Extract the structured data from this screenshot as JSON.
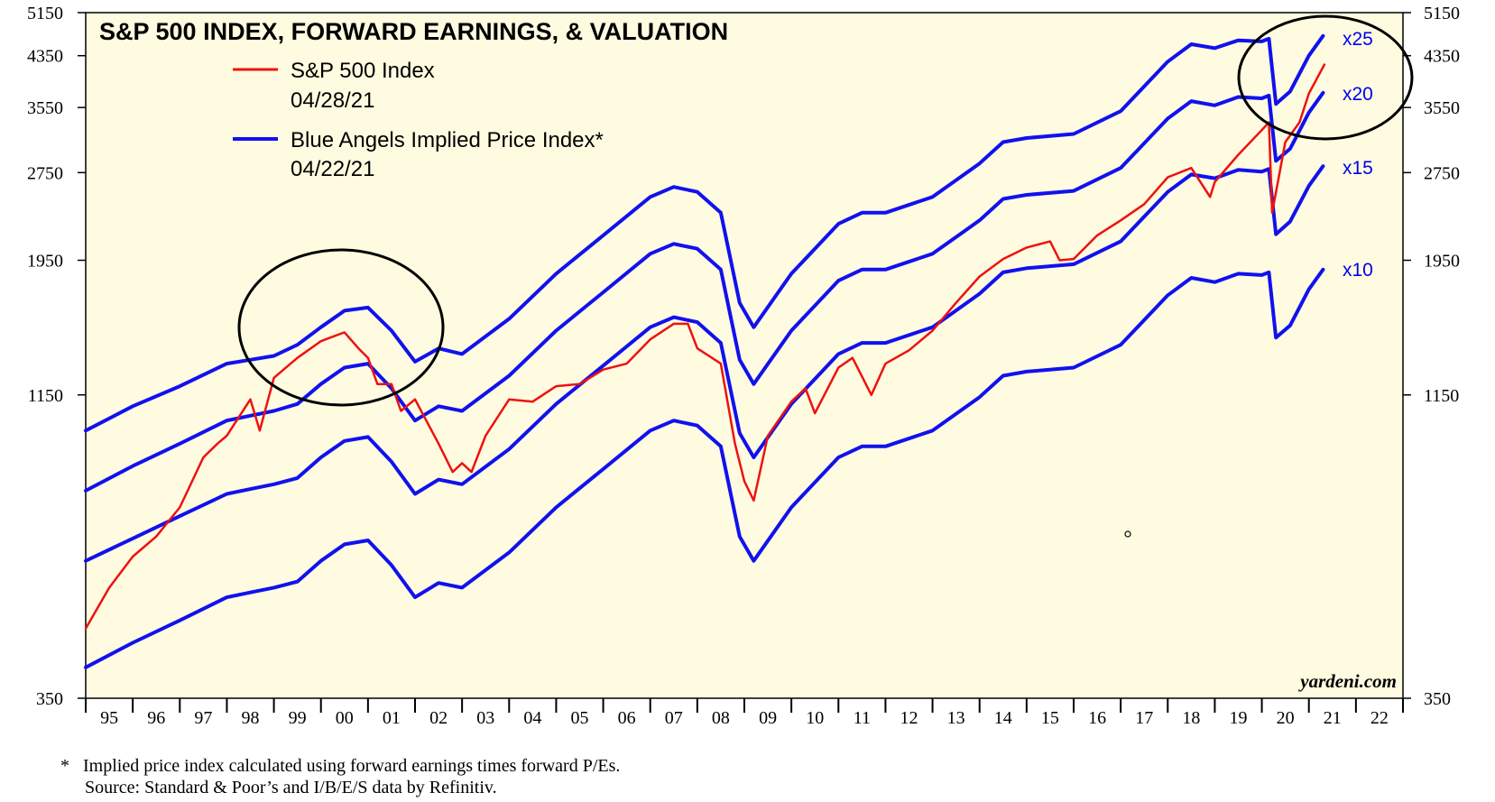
{
  "chart_data": {
    "type": "line",
    "title": "S&P 500 INDEX, FORWARD EARNINGS, & VALUATION",
    "y_scale": "log",
    "ylim": [
      350,
      5150
    ],
    "y_ticks": [
      "5150",
      "4350",
      "3550",
      "2750",
      "1950",
      "1150",
      "350"
    ],
    "x_ticks": [
      "95",
      "96",
      "97",
      "98",
      "99",
      "00",
      "01",
      "02",
      "03",
      "04",
      "05",
      "06",
      "07",
      "08",
      "09",
      "10",
      "11",
      "12",
      "13",
      "14",
      "15",
      "16",
      "17",
      "18",
      "19",
      "20",
      "21",
      "22"
    ],
    "xlim": [
      1995.0,
      2023.0
    ],
    "legend": [
      {
        "label": "S&P 500 Index",
        "date": "04/28/21",
        "color": "#ee1111"
      },
      {
        "label": "Blue Angels Implied Price Index*",
        "date": "04/22/21",
        "color": "#1111ee"
      }
    ],
    "multiple_labels": [
      "x25",
      "x20",
      "x15",
      "x10"
    ],
    "series": [
      {
        "name": "S&P 500 Index",
        "color": "#ee1111",
        "x": [
          1995.0,
          1995.5,
          1996.0,
          1996.5,
          1997.0,
          1997.5,
          1997.8,
          1998.0,
          1998.5,
          1998.7,
          1999.0,
          1999.5,
          2000.0,
          2000.2,
          2000.5,
          2000.8,
          2001.0,
          2001.2,
          2001.5,
          2001.7,
          2002.0,
          2002.5,
          2002.8,
          2003.0,
          2003.2,
          2003.5,
          2004.0,
          2004.5,
          2005.0,
          2005.5,
          2006.0,
          2006.5,
          2007.0,
          2007.5,
          2007.8,
          2008.0,
          2008.5,
          2008.8,
          2009.0,
          2009.2,
          2009.5,
          2010.0,
          2010.3,
          2010.5,
          2011.0,
          2011.3,
          2011.7,
          2012.0,
          2012.5,
          2013.0,
          2013.5,
          2014.0,
          2014.5,
          2015.0,
          2015.5,
          2015.7,
          2016.0,
          2016.5,
          2017.0,
          2017.5,
          2018.0,
          2018.5,
          2018.9,
          2019.0,
          2019.5,
          2020.0,
          2020.15,
          2020.22,
          2020.5,
          2020.8,
          2021.0,
          2021.33
        ],
        "y": [
          460,
          540,
          610,
          660,
          740,
          900,
          950,
          980,
          1130,
          1000,
          1230,
          1330,
          1420,
          1440,
          1470,
          1380,
          1330,
          1200,
          1200,
          1080,
          1130,
          950,
          850,
          880,
          850,
          980,
          1130,
          1120,
          1190,
          1200,
          1270,
          1300,
          1430,
          1520,
          1520,
          1380,
          1300,
          950,
          820,
          760,
          980,
          1120,
          1180,
          1070,
          1280,
          1330,
          1150,
          1300,
          1370,
          1480,
          1650,
          1830,
          1960,
          2050,
          2100,
          1950,
          1960,
          2150,
          2280,
          2430,
          2700,
          2800,
          2500,
          2650,
          2950,
          3250,
          3350,
          2350,
          3100,
          3350,
          3750,
          4200
        ]
      },
      {
        "name": "x25",
        "color": "#1111ee",
        "x": [
          1995.0,
          1996.0,
          1997.0,
          1998.0,
          1998.5,
          1999.0,
          1999.5,
          2000.0,
          2000.5,
          2001.0,
          2001.5,
          2002.0,
          2002.5,
          2003.0,
          2004.0,
          2005.0,
          2006.0,
          2007.0,
          2007.5,
          2008.0,
          2008.5,
          2008.9,
          2009.2,
          2010.0,
          2011.0,
          2011.5,
          2012.0,
          2013.0,
          2014.0,
          2014.5,
          2015.0,
          2016.0,
          2017.0,
          2018.0,
          2018.5,
          2019.0,
          2019.5,
          2020.0,
          2020.15,
          2020.3,
          2020.6,
          2021.0,
          2021.3
        ],
        "y": [
          1000,
          1100,
          1190,
          1300,
          1320,
          1340,
          1400,
          1500,
          1600,
          1620,
          1480,
          1310,
          1380,
          1350,
          1550,
          1850,
          2150,
          2500,
          2600,
          2550,
          2350,
          1650,
          1500,
          1850,
          2250,
          2350,
          2350,
          2500,
          2850,
          3100,
          3150,
          3200,
          3500,
          4250,
          4550,
          4480,
          4620,
          4600,
          4650,
          3600,
          3780,
          4350,
          4700
        ]
      },
      {
        "name": "x20",
        "color": "#1111ee",
        "x": [
          1995.0,
          1996.0,
          1997.0,
          1998.0,
          1998.5,
          1999.0,
          1999.5,
          2000.0,
          2000.5,
          2001.0,
          2001.5,
          2002.0,
          2002.5,
          2003.0,
          2004.0,
          2005.0,
          2006.0,
          2007.0,
          2007.5,
          2008.0,
          2008.5,
          2008.9,
          2009.2,
          2010.0,
          2011.0,
          2011.5,
          2012.0,
          2013.0,
          2014.0,
          2014.5,
          2015.0,
          2016.0,
          2017.0,
          2018.0,
          2018.5,
          2019.0,
          2019.5,
          2020.0,
          2020.15,
          2020.3,
          2020.6,
          2021.0,
          2021.3
        ],
        "y": [
          790,
          870,
          950,
          1040,
          1060,
          1080,
          1110,
          1200,
          1280,
          1300,
          1180,
          1040,
          1100,
          1080,
          1240,
          1480,
          1720,
          2000,
          2080,
          2040,
          1880,
          1320,
          1200,
          1480,
          1800,
          1880,
          1880,
          2000,
          2280,
          2480,
          2520,
          2560,
          2800,
          3400,
          3640,
          3580,
          3700,
          3680,
          3720,
          2880,
          3020,
          3480,
          3760
        ]
      },
      {
        "name": "x15",
        "color": "#1111ee",
        "x": [
          1995.0,
          1996.0,
          1997.0,
          1998.0,
          1998.5,
          1999.0,
          1999.5,
          2000.0,
          2000.5,
          2001.0,
          2001.5,
          2002.0,
          2002.5,
          2003.0,
          2004.0,
          2005.0,
          2006.0,
          2007.0,
          2007.5,
          2008.0,
          2008.5,
          2008.9,
          2009.2,
          2010.0,
          2011.0,
          2011.5,
          2012.0,
          2013.0,
          2014.0,
          2014.5,
          2015.0,
          2016.0,
          2017.0,
          2018.0,
          2018.5,
          2019.0,
          2019.5,
          2020.0,
          2020.15,
          2020.3,
          2020.6,
          2021.0,
          2021.3
        ],
        "y": [
          600,
          655,
          715,
          780,
          795,
          810,
          830,
          900,
          960,
          975,
          885,
          780,
          825,
          810,
          930,
          1110,
          1290,
          1500,
          1560,
          1530,
          1410,
          990,
          900,
          1110,
          1350,
          1410,
          1410,
          1500,
          1710,
          1860,
          1890,
          1920,
          2100,
          2550,
          2730,
          2690,
          2780,
          2760,
          2790,
          2160,
          2270,
          2610,
          2820
        ]
      },
      {
        "name": "x10",
        "color": "#1111ee",
        "x": [
          1995.0,
          1996.0,
          1997.0,
          1998.0,
          1998.5,
          1999.0,
          1999.5,
          2000.0,
          2000.5,
          2001.0,
          2001.5,
          2002.0,
          2002.5,
          2003.0,
          2004.0,
          2005.0,
          2006.0,
          2007.0,
          2007.5,
          2008.0,
          2008.5,
          2008.9,
          2009.2,
          2010.0,
          2011.0,
          2011.5,
          2012.0,
          2013.0,
          2014.0,
          2014.5,
          2015.0,
          2016.0,
          2017.0,
          2018.0,
          2018.5,
          2019.0,
          2019.5,
          2020.0,
          2020.15,
          2020.3,
          2020.6,
          2021.0,
          2021.3
        ],
        "y": [
          395,
          435,
          475,
          520,
          530,
          540,
          553,
          600,
          640,
          650,
          590,
          520,
          550,
          540,
          620,
          740,
          860,
          1000,
          1040,
          1020,
          940,
          660,
          600,
          740,
          900,
          940,
          940,
          1000,
          1140,
          1240,
          1260,
          1280,
          1400,
          1700,
          1820,
          1790,
          1850,
          1840,
          1860,
          1440,
          1510,
          1740,
          1880
        ]
      }
    ],
    "annotations": [
      "yardeni.com"
    ]
  },
  "footnote": {
    "marker": "*",
    "line1": "Implied price index calculated using forward earnings times forward P/Es.",
    "line2": "Source: Standard & Poor’s and I/B/E/S data by Refinitiv."
  }
}
